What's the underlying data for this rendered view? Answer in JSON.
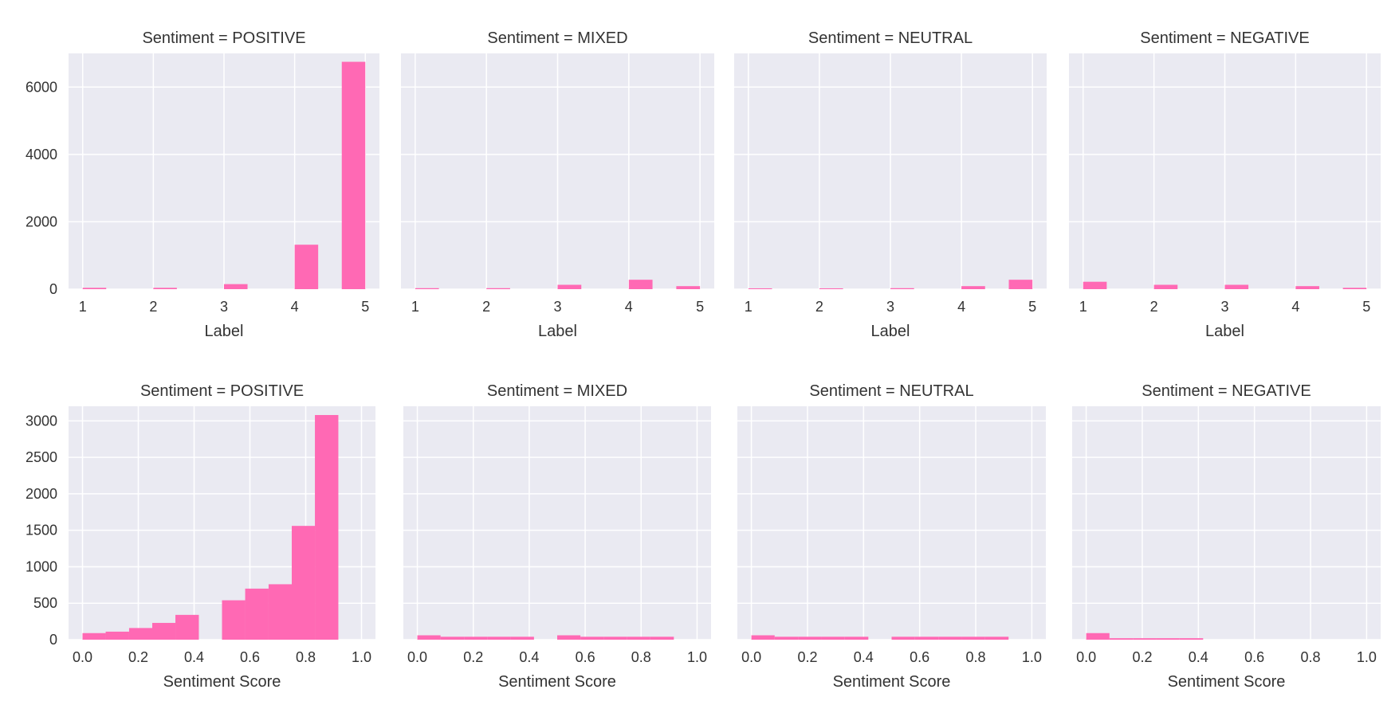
{
  "colors": {
    "bar": "#ff69b4",
    "panel_background": "#eaeaf2",
    "grid": "#ffffff",
    "text": "#333333"
  },
  "chart_data": [
    {
      "type": "bar",
      "title": "Sentiment = POSITIVE",
      "xlabel": "Label",
      "ylabel": "",
      "xlim": [
        0.8,
        5.2
      ],
      "ylim": [
        0,
        7000
      ],
      "xticks": [
        1,
        2,
        3,
        4,
        5
      ],
      "xtick_labels": [
        "1",
        "2",
        "3",
        "4",
        "5"
      ],
      "yticks": [
        0,
        2000,
        4000,
        6000
      ],
      "ytick_labels": [
        "0",
        "2000",
        "4000",
        "6000"
      ],
      "show_yticklabels": true,
      "grid": true,
      "bins": [
        [
          1,
          1.333,
          40
        ],
        [
          2,
          2.333,
          40
        ],
        [
          3,
          3.333,
          150
        ],
        [
          4,
          4.333,
          1320
        ],
        [
          4.667,
          5,
          6750
        ]
      ]
    },
    {
      "type": "bar",
      "title": "Sentiment = MIXED",
      "xlabel": "Label",
      "ylabel": "",
      "xlim": [
        0.8,
        5.2
      ],
      "ylim": [
        0,
        7000
      ],
      "xticks": [
        1,
        2,
        3,
        4,
        5
      ],
      "xtick_labels": [
        "1",
        "2",
        "3",
        "4",
        "5"
      ],
      "yticks": [
        0,
        2000,
        4000,
        6000
      ],
      "ytick_labels": [
        "0",
        "2000",
        "4000",
        "6000"
      ],
      "show_yticklabels": false,
      "grid": true,
      "bins": [
        [
          1,
          1.333,
          30
        ],
        [
          2,
          2.333,
          30
        ],
        [
          3,
          3.333,
          130
        ],
        [
          4,
          4.333,
          280
        ],
        [
          4.667,
          5,
          90
        ]
      ]
    },
    {
      "type": "bar",
      "title": "Sentiment = NEUTRAL",
      "xlabel": "Label",
      "ylabel": "",
      "xlim": [
        0.8,
        5.2
      ],
      "ylim": [
        0,
        7000
      ],
      "xticks": [
        1,
        2,
        3,
        4,
        5
      ],
      "xtick_labels": [
        "1",
        "2",
        "3",
        "4",
        "5"
      ],
      "yticks": [
        0,
        2000,
        4000,
        6000
      ],
      "ytick_labels": [
        "0",
        "2000",
        "4000",
        "6000"
      ],
      "show_yticklabels": false,
      "grid": true,
      "bins": [
        [
          1,
          1.333,
          25
        ],
        [
          2,
          2.333,
          25
        ],
        [
          3,
          3.333,
          30
        ],
        [
          4,
          4.333,
          90
        ],
        [
          4.667,
          5,
          280
        ]
      ]
    },
    {
      "type": "bar",
      "title": "Sentiment = NEGATIVE",
      "xlabel": "Label",
      "ylabel": "",
      "xlim": [
        0.8,
        5.2
      ],
      "ylim": [
        0,
        7000
      ],
      "xticks": [
        1,
        2,
        3,
        4,
        5
      ],
      "xtick_labels": [
        "1",
        "2",
        "3",
        "4",
        "5"
      ],
      "yticks": [
        0,
        2000,
        4000,
        6000
      ],
      "ytick_labels": [
        "0",
        "2000",
        "4000",
        "6000"
      ],
      "show_yticklabels": false,
      "grid": true,
      "bins": [
        [
          1,
          1.333,
          220
        ],
        [
          2,
          2.333,
          130
        ],
        [
          3,
          3.333,
          130
        ],
        [
          4,
          4.333,
          90
        ],
        [
          4.667,
          5,
          40
        ]
      ]
    },
    {
      "type": "bar",
      "title": "Sentiment = POSITIVE",
      "xlabel": "Sentiment Score",
      "ylabel": "",
      "xlim": [
        -0.05,
        1.05
      ],
      "ylim": [
        0,
        3200
      ],
      "xticks": [
        0,
        0.2,
        0.4,
        0.6,
        0.8,
        1.0
      ],
      "xtick_labels": [
        "0.0",
        "0.2",
        "0.4",
        "0.6",
        "0.8",
        "1.0"
      ],
      "yticks": [
        0,
        500,
        1000,
        1500,
        2000,
        2500,
        3000
      ],
      "ytick_labels": [
        "0",
        "500",
        "1000",
        "1500",
        "2000",
        "2500",
        "3000"
      ],
      "show_yticklabels": true,
      "grid": true,
      "bins": [
        [
          0.0,
          0.083,
          90
        ],
        [
          0.083,
          0.167,
          110
        ],
        [
          0.167,
          0.25,
          160
        ],
        [
          0.25,
          0.333,
          230
        ],
        [
          0.333,
          0.417,
          340
        ],
        [
          0.5,
          0.583,
          540
        ],
        [
          0.583,
          0.667,
          700
        ],
        [
          0.667,
          0.75,
          760
        ],
        [
          0.75,
          0.833,
          1560
        ],
        [
          0.833,
          0.917,
          3080
        ]
      ]
    },
    {
      "type": "bar",
      "title": "Sentiment = MIXED",
      "xlabel": "Sentiment Score",
      "ylabel": "",
      "xlim": [
        -0.05,
        1.05
      ],
      "ylim": [
        0,
        3200
      ],
      "xticks": [
        0,
        0.2,
        0.4,
        0.6,
        0.8,
        1.0
      ],
      "xtick_labels": [
        "0.0",
        "0.2",
        "0.4",
        "0.6",
        "0.8",
        "1.0"
      ],
      "yticks": [
        0,
        500,
        1000,
        1500,
        2000,
        2500,
        3000
      ],
      "ytick_labels": [
        "0",
        "500",
        "1000",
        "1500",
        "2000",
        "2500",
        "3000"
      ],
      "show_yticklabels": false,
      "grid": true,
      "bins": [
        [
          0.0,
          0.083,
          60
        ],
        [
          0.083,
          0.167,
          40
        ],
        [
          0.167,
          0.25,
          40
        ],
        [
          0.25,
          0.333,
          40
        ],
        [
          0.333,
          0.417,
          40
        ],
        [
          0.5,
          0.583,
          60
        ],
        [
          0.583,
          0.667,
          40
        ],
        [
          0.667,
          0.75,
          40
        ],
        [
          0.75,
          0.833,
          40
        ],
        [
          0.833,
          0.917,
          40
        ]
      ]
    },
    {
      "type": "bar",
      "title": "Sentiment = NEUTRAL",
      "xlabel": "Sentiment Score",
      "ylabel": "",
      "xlim": [
        -0.05,
        1.05
      ],
      "ylim": [
        0,
        3200
      ],
      "xticks": [
        0,
        0.2,
        0.4,
        0.6,
        0.8,
        1.0
      ],
      "xtick_labels": [
        "0.0",
        "0.2",
        "0.4",
        "0.6",
        "0.8",
        "1.0"
      ],
      "yticks": [
        0,
        500,
        1000,
        1500,
        2000,
        2500,
        3000
      ],
      "ytick_labels": [
        "0",
        "500",
        "1000",
        "1500",
        "2000",
        "2500",
        "3000"
      ],
      "show_yticklabels": false,
      "grid": true,
      "bins": [
        [
          0.0,
          0.083,
          60
        ],
        [
          0.083,
          0.167,
          40
        ],
        [
          0.167,
          0.25,
          40
        ],
        [
          0.25,
          0.333,
          40
        ],
        [
          0.333,
          0.417,
          40
        ],
        [
          0.5,
          0.583,
          40
        ],
        [
          0.583,
          0.667,
          40
        ],
        [
          0.667,
          0.75,
          40
        ],
        [
          0.75,
          0.833,
          40
        ],
        [
          0.833,
          0.917,
          40
        ]
      ]
    },
    {
      "type": "bar",
      "title": "Sentiment = NEGATIVE",
      "xlabel": "Sentiment Score",
      "ylabel": "",
      "xlim": [
        -0.05,
        1.05
      ],
      "ylim": [
        0,
        3200
      ],
      "xticks": [
        0,
        0.2,
        0.4,
        0.6,
        0.8,
        1.0
      ],
      "xtick_labels": [
        "0.0",
        "0.2",
        "0.4",
        "0.6",
        "0.8",
        "1.0"
      ],
      "yticks": [
        0,
        500,
        1000,
        1500,
        2000,
        2500,
        3000
      ],
      "ytick_labels": [
        "0",
        "500",
        "1000",
        "1500",
        "2000",
        "2500",
        "3000"
      ],
      "show_yticklabels": false,
      "grid": true,
      "bins": [
        [
          0.0,
          0.083,
          90
        ],
        [
          0.083,
          0.167,
          20
        ],
        [
          0.167,
          0.25,
          20
        ],
        [
          0.25,
          0.333,
          20
        ],
        [
          0.333,
          0.417,
          20
        ]
      ]
    }
  ]
}
